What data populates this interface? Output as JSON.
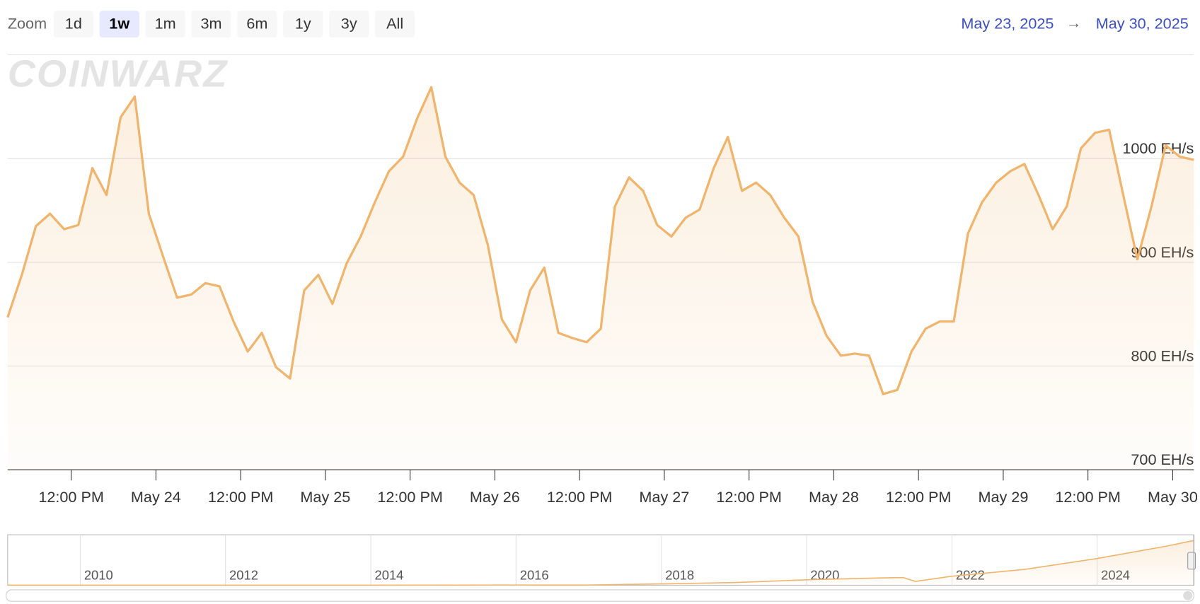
{
  "zoom": {
    "label": "Zoom",
    "buttons": [
      "1d",
      "1w",
      "1m",
      "3m",
      "6m",
      "1y",
      "3y",
      "All"
    ],
    "selected": "1w"
  },
  "range": {
    "from": "May 23, 2025",
    "arrow": "→",
    "to": "May 30, 2025"
  },
  "watermark": "CoinWarz",
  "chart_data": [
    {
      "type": "line",
      "color": "#f0b46c",
      "area": true,
      "grid": true,
      "x": [
        "2025-05-23T03:00",
        "2025-05-23T05:00",
        "2025-05-23T07:00",
        "2025-05-23T09:00",
        "2025-05-23T11:00",
        "2025-05-23T13:00",
        "2025-05-23T15:00",
        "2025-05-23T17:00",
        "2025-05-23T19:00",
        "2025-05-23T21:00",
        "2025-05-23T23:00",
        "2025-05-24T01:00",
        "2025-05-24T03:00",
        "2025-05-24T05:00",
        "2025-05-24T07:00",
        "2025-05-24T09:00",
        "2025-05-24T11:00",
        "2025-05-24T13:00",
        "2025-05-24T15:00",
        "2025-05-24T17:00",
        "2025-05-24T19:00",
        "2025-05-24T21:00",
        "2025-05-24T23:00",
        "2025-05-25T01:00",
        "2025-05-25T03:00",
        "2025-05-25T05:00",
        "2025-05-25T07:00",
        "2025-05-25T09:00",
        "2025-05-25T11:00",
        "2025-05-25T13:00",
        "2025-05-25T15:00",
        "2025-05-25T17:00",
        "2025-05-25T19:00",
        "2025-05-25T21:00",
        "2025-05-25T23:00",
        "2025-05-26T01:00",
        "2025-05-26T03:00",
        "2025-05-26T05:00",
        "2025-05-26T07:00",
        "2025-05-26T09:00",
        "2025-05-26T11:00",
        "2025-05-26T13:00",
        "2025-05-26T15:00",
        "2025-05-26T17:00",
        "2025-05-26T19:00",
        "2025-05-26T21:00",
        "2025-05-26T23:00",
        "2025-05-27T01:00",
        "2025-05-27T03:00",
        "2025-05-27T05:00",
        "2025-05-27T07:00",
        "2025-05-27T09:00",
        "2025-05-27T11:00",
        "2025-05-27T13:00",
        "2025-05-27T15:00",
        "2025-05-27T17:00",
        "2025-05-27T19:00",
        "2025-05-27T21:00",
        "2025-05-27T23:00",
        "2025-05-28T01:00",
        "2025-05-28T03:00",
        "2025-05-28T05:00",
        "2025-05-28T07:00",
        "2025-05-28T09:00",
        "2025-05-28T11:00",
        "2025-05-28T13:00",
        "2025-05-28T15:00",
        "2025-05-28T17:00",
        "2025-05-28T19:00",
        "2025-05-28T21:00",
        "2025-05-28T23:00",
        "2025-05-29T01:00",
        "2025-05-29T03:00",
        "2025-05-29T05:00",
        "2025-05-29T07:00",
        "2025-05-29T09:00",
        "2025-05-29T11:00",
        "2025-05-29T13:00",
        "2025-05-29T15:00",
        "2025-05-29T17:00",
        "2025-05-29T19:00",
        "2025-05-29T21:00",
        "2025-05-29T23:00",
        "2025-05-30T01:00",
        "2025-05-30T03:00"
      ],
      "values": [
        847,
        888,
        935,
        947,
        932,
        936,
        991,
        965,
        1040,
        1060,
        947,
        906,
        866,
        869,
        880,
        877,
        843,
        814,
        832,
        799,
        788,
        873,
        888,
        860,
        899,
        925,
        958,
        988,
        1002,
        1039,
        1069,
        1002,
        977,
        965,
        917,
        845,
        823,
        873,
        895,
        832,
        827,
        823,
        836,
        954,
        982,
        969,
        936,
        925,
        943,
        951,
        991,
        1021,
        969,
        977,
        965,
        943,
        925,
        862,
        829,
        810,
        812,
        810,
        773,
        777,
        814,
        836,
        843,
        843,
        928,
        958,
        977,
        988,
        995,
        965,
        932,
        954,
        1010,
        1025,
        1028,
        965,
        903,
        954,
        1013,
        1002,
        999
      ],
      "xlim": [
        "2025-05-23T03:00",
        "2025-05-30T03:00"
      ],
      "xticks": [
        {
          "value": "2025-05-23T12:00",
          "label": "12:00 PM"
        },
        {
          "value": "2025-05-24T00:00",
          "label": "May 24"
        },
        {
          "value": "2025-05-24T12:00",
          "label": "12:00 PM"
        },
        {
          "value": "2025-05-25T00:00",
          "label": "May 25"
        },
        {
          "value": "2025-05-25T12:00",
          "label": "12:00 PM"
        },
        {
          "value": "2025-05-26T00:00",
          "label": "May 26"
        },
        {
          "value": "2025-05-26T12:00",
          "label": "12:00 PM"
        },
        {
          "value": "2025-05-27T00:00",
          "label": "May 27"
        },
        {
          "value": "2025-05-27T12:00",
          "label": "12:00 PM"
        },
        {
          "value": "2025-05-28T00:00",
          "label": "May 28"
        },
        {
          "value": "2025-05-28T12:00",
          "label": "12:00 PM"
        },
        {
          "value": "2025-05-29T00:00",
          "label": "May 29"
        },
        {
          "value": "2025-05-29T12:00",
          "label": "12:00 PM"
        },
        {
          "value": "2025-05-30T00:00",
          "label": "May 30"
        }
      ],
      "ylim": [
        700,
        1100
      ],
      "yticks": [
        {
          "value": 700,
          "label": "700 EH/s"
        },
        {
          "value": 800,
          "label": "800 EH/s"
        },
        {
          "value": 900,
          "label": "900 EH/s"
        },
        {
          "value": 1000,
          "label": "1000 EH/s"
        }
      ]
    },
    {
      "type": "line",
      "color": "#f0b46c",
      "area": true,
      "grid": true,
      "x": [
        "2009-01",
        "2014-01",
        "2017-01",
        "2018-01",
        "2019-01",
        "2020-01",
        "2021-01",
        "2021-05",
        "2021-07",
        "2022-01",
        "2023-01",
        "2024-01",
        "2025-01",
        "2025-05"
      ],
      "values": [
        0,
        0,
        5,
        30,
        60,
        120,
        160,
        170,
        85,
        200,
        350,
        590,
        880,
        990
      ],
      "xlim": [
        "2009-01",
        "2025-05"
      ],
      "xticks": [
        {
          "value": "2010-01",
          "label": "2010"
        },
        {
          "value": "2012-01",
          "label": "2012"
        },
        {
          "value": "2014-01",
          "label": "2014"
        },
        {
          "value": "2016-01",
          "label": "2016"
        },
        {
          "value": "2018-01",
          "label": "2018"
        },
        {
          "value": "2020-01",
          "label": "2020"
        },
        {
          "value": "2022-01",
          "label": "2022"
        },
        {
          "value": "2024-01",
          "label": "2024"
        }
      ],
      "ylim": [
        0,
        1100
      ]
    }
  ]
}
